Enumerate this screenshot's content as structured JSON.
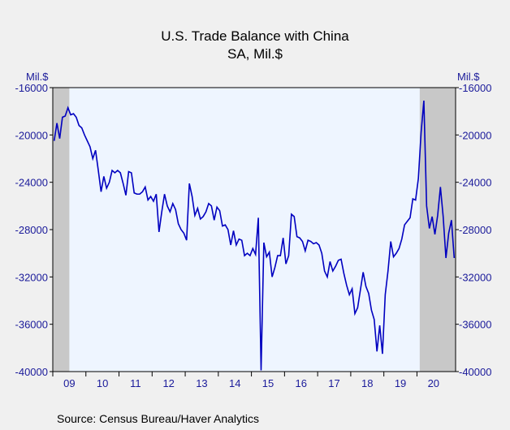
{
  "chart_data": {
    "type": "line",
    "title": "U.S. Trade Balance with China",
    "subtitle": "SA, Mil.$",
    "y_label": "Mil.$",
    "y2_label": "Mil.$",
    "source": "Source:  Census Bureau/Haver Analytics",
    "x_labels": [
      "09",
      "10",
      "11",
      "12",
      "13",
      "14",
      "15",
      "16",
      "17",
      "18",
      "19",
      "20"
    ],
    "shaded_ranges": [
      [
        0,
        6
      ],
      [
        133,
        147
      ]
    ],
    "ylim": [
      -40000,
      -16000
    ],
    "yticks": [
      -40000,
      -36000,
      -32000,
      -28000,
      -24000,
      -20000,
      -16000
    ],
    "y2lim": [
      -40000,
      -16000
    ],
    "y2ticks": [
      -40000,
      -36000,
      -32000,
      -28000,
      -24000,
      -20000,
      -16000
    ],
    "series": [
      {
        "name": "U.S. Trade Balance with China",
        "color": "#0000c0",
        "values": [
          -20500,
          -19000,
          -20300,
          -18500,
          -18400,
          -17700,
          -18300,
          -18200,
          -18500,
          -19200,
          -19400,
          -20000,
          -20500,
          -21000,
          -22000,
          -21300,
          -23000,
          -24800,
          -23500,
          -24500,
          -24000,
          -23000,
          -23200,
          -23000,
          -23200,
          -24100,
          -25100,
          -23100,
          -23200,
          -24900,
          -25000,
          -25000,
          -24800,
          -24400,
          -25500,
          -25200,
          -25600,
          -25000,
          -28200,
          -26500,
          -25000,
          -26000,
          -26500,
          -25800,
          -26300,
          -27500,
          -28000,
          -28300,
          -28900,
          -24100,
          -25200,
          -26800,
          -26200,
          -27100,
          -26900,
          -26500,
          -25800,
          -26000,
          -27200,
          -26100,
          -26400,
          -27700,
          -27600,
          -28000,
          -29300,
          -28100,
          -29300,
          -28800,
          -28900,
          -30200,
          -30000,
          -30200,
          -29600,
          -30100,
          -27000,
          -39900,
          -29100,
          -30300,
          -29900,
          -32000,
          -31200,
          -30200,
          -30200,
          -28700,
          -30900,
          -30200,
          -26700,
          -26900,
          -28600,
          -28700,
          -29000,
          -29800,
          -28900,
          -29000,
          -29200,
          -29100,
          -29300,
          -30000,
          -31500,
          -32000,
          -30700,
          -31500,
          -31100,
          -30600,
          -30500,
          -31700,
          -32700,
          -33500,
          -33000,
          -35100,
          -34600,
          -33100,
          -31600,
          -32800,
          -33400,
          -34800,
          -35600,
          -38300,
          -36100,
          -38500,
          -33500,
          -31500,
          -29000,
          -30300,
          -30000,
          -29600,
          -28800,
          -27600,
          -27300,
          -27000,
          -25400,
          -25500,
          -23700,
          -19800,
          -17100,
          -26000,
          -27900,
          -26900,
          -28400,
          -26800,
          -24400,
          -26900,
          -30400,
          -28300,
          -27200,
          -30400
        ]
      }
    ]
  }
}
